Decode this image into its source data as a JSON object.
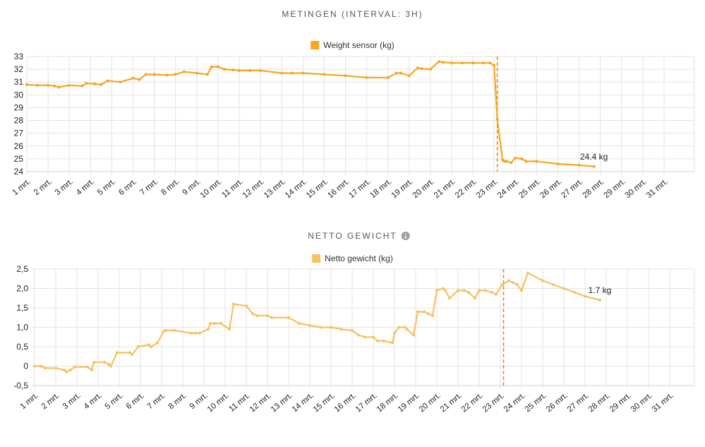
{
  "chart_data": [
    {
      "type": "line",
      "title": "METINGEN (INTERVAL: 3H)",
      "info_icon": "",
      "legend": "Weight sensor (kg)",
      "legend_position": "top-center",
      "color": "#F5A623",
      "grid": true,
      "categories": [
        "1 mrt.",
        "2 mrt.",
        "3 mrt.",
        "4 mrt.",
        "5 mrt.",
        "6 mrt.",
        "7 mrt.",
        "8 mrt.",
        "9 mrt.",
        "10 mrt.",
        "11 mrt.",
        "12 mrt.",
        "13 mrt.",
        "14 mrt.",
        "15 mrt.",
        "16 mrt.",
        "17 mrt.",
        "18 mrt.",
        "19 mrt.",
        "20 mrt.",
        "21 mrt.",
        "22 mrt.",
        "23 mrt.",
        "24 mrt.",
        "25 mrt.",
        "26 mrt.",
        "27 mrt.",
        "28 mrt.",
        "29 mrt.",
        "30 mrt.",
        "31 mrt."
      ],
      "ylim": [
        24,
        33
      ],
      "yticks": [
        "24",
        "25",
        "26",
        "27",
        "28",
        "29",
        "30",
        "31",
        "32",
        "33"
      ],
      "x": [
        0,
        0.5,
        1.0,
        1.3,
        1.5,
        2.0,
        2.6,
        2.8,
        3.2,
        3.5,
        3.8,
        4.4,
        5.0,
        5.3,
        5.6,
        6.0,
        6.6,
        7.0,
        7.4,
        8.0,
        8.5,
        8.7,
        9.0,
        9.3,
        9.7,
        10.0,
        10.5,
        11.0,
        12.0,
        12.5,
        13.0,
        14.0,
        15.0,
        16.0,
        17.0,
        17.4,
        17.6,
        18.0,
        18.4,
        18.6,
        19.0,
        19.4,
        19.6,
        20.0,
        20.5,
        21.0,
        21.5,
        21.8,
        22.0,
        22.15,
        22.4,
        22.45,
        22.5,
        22.6,
        22.8,
        23.0,
        23.3,
        23.5,
        24.0,
        25.0,
        26.0,
        26.7
      ],
      "y": [
        30.8,
        30.75,
        30.75,
        30.7,
        30.6,
        30.75,
        30.7,
        30.9,
        30.85,
        30.8,
        31.1,
        31.0,
        31.3,
        31.2,
        31.6,
        31.6,
        31.55,
        31.6,
        31.8,
        31.7,
        31.6,
        32.2,
        32.2,
        32.0,
        31.95,
        31.9,
        31.9,
        31.9,
        31.7,
        31.7,
        31.7,
        31.6,
        31.5,
        31.35,
        31.35,
        31.7,
        31.7,
        31.5,
        32.1,
        32.05,
        32.0,
        32.6,
        32.55,
        32.5,
        32.5,
        32.5,
        32.5,
        32.5,
        32.3,
        28.1,
        24.9,
        24.85,
        24.8,
        24.8,
        24.7,
        25.05,
        25.0,
        24.8,
        24.8,
        24.6,
        24.5,
        24.4
      ],
      "markers": [
        22.15
      ],
      "end_label": "24.4 kg"
    },
    {
      "type": "line",
      "title": "NETTO GEWICHT",
      "info_icon": "info-circle-icon",
      "legend": "Netto gewicht (kg)",
      "legend_position": "top-center",
      "color": "#F8C15E",
      "grid": true,
      "categories": [
        "1 mrt.",
        "2 mrt.",
        "3 mrt.",
        "4 mrt.",
        "5 mrt.",
        "6 mrt.",
        "7 mrt.",
        "8 mrt.",
        "9 mrt.",
        "10 mrt.",
        "11 mrt.",
        "12 mrt.",
        "13 mrt.",
        "14 mrt.",
        "15 mrt.",
        "16 mrt.",
        "17 mrt.",
        "18 mrt.",
        "19 mrt.",
        "20 mrt.",
        "21 mrt.",
        "22 mrt.",
        "23 mrt.",
        "24 mrt.",
        "25 mrt.",
        "26 mrt.",
        "27 mrt.",
        "28 mrt.",
        "29 mrt.",
        "30 mrt.",
        "31 mrt."
      ],
      "ylim": [
        -0.5,
        2.5
      ],
      "yticks": [
        "-0,5",
        "0",
        "0,5",
        "1,0",
        "1,5",
        "2,0",
        "2,5"
      ],
      "x": [
        0,
        0.3,
        0.5,
        1.0,
        1.4,
        1.5,
        1.7,
        1.9,
        2.5,
        2.7,
        2.8,
        3.3,
        3.5,
        3.6,
        3.9,
        4.5,
        4.6,
        4.9,
        5.4,
        5.5,
        5.8,
        6.1,
        6.2,
        6.6,
        7.4,
        7.6,
        7.8,
        8.2,
        8.3,
        8.5,
        8.8,
        9.2,
        9.4,
        10.0,
        10.3,
        10.5,
        11.0,
        11.2,
        12.0,
        12.5,
        13.0,
        13.5,
        14.0,
        14.5,
        15.0,
        15.3,
        15.6,
        16.0,
        16.2,
        16.5,
        16.9,
        17.0,
        17.2,
        17.5,
        17.6,
        17.9,
        18.1,
        18.4,
        18.6,
        18.8,
        19.0,
        19.3,
        19.4,
        19.6,
        20.0,
        20.3,
        20.5,
        20.8,
        21.0,
        21.3,
        21.6,
        21.8,
        22.1,
        22.4,
        22.6,
        22.8,
        23.0,
        23.3,
        24.0,
        24.5,
        25.0,
        25.5,
        26.0,
        26.7
      ],
      "y": [
        0.0,
        0.0,
        -0.05,
        -0.05,
        -0.1,
        -0.15,
        -0.1,
        -0.02,
        -0.02,
        -0.1,
        0.1,
        0.1,
        0.05,
        0.0,
        0.35,
        0.35,
        0.3,
        0.5,
        0.55,
        0.5,
        0.6,
        0.9,
        0.92,
        0.92,
        0.85,
        0.85,
        0.85,
        0.95,
        1.1,
        1.1,
        1.1,
        0.95,
        1.6,
        1.55,
        1.35,
        1.3,
        1.3,
        1.25,
        1.25,
        1.1,
        1.05,
        1.0,
        1.0,
        0.95,
        0.92,
        0.8,
        0.75,
        0.75,
        0.65,
        0.65,
        0.6,
        0.85,
        1.0,
        1.0,
        0.95,
        0.8,
        1.4,
        1.4,
        1.35,
        1.3,
        1.95,
        2.0,
        1.95,
        1.75,
        1.95,
        1.95,
        1.9,
        1.75,
        1.95,
        1.95,
        1.9,
        1.85,
        2.1,
        2.2,
        2.15,
        2.1,
        1.95,
        2.4,
        2.2,
        2.1,
        2.0,
        1.9,
        1.8,
        1.7
      ],
      "markers": [
        22.15
      ],
      "end_label": "1.7 kg"
    }
  ]
}
